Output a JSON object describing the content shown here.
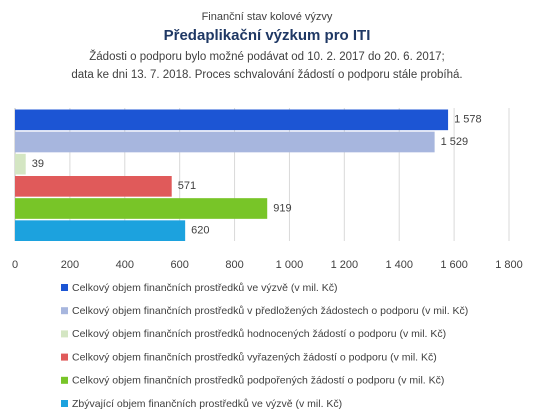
{
  "chart_data": {
    "type": "bar",
    "orientation": "horizontal",
    "title": "Předaplikační výzkum pro ITI",
    "supertitle": "Finanční stav kolové výzvy",
    "subtitle": [
      "Žádosti o podporu bylo možné  podávat od 10. 2. 2017 do 20. 6. 2017;",
      "data ke dni 13. 7. 2018. Proces schvalování žádostí o podporu stále probíhá."
    ],
    "series": [
      {
        "name": "Celkový objem finančních prostředků ve výzvě (v mil. Kč)",
        "color": "#1c55d4",
        "values": [
          1578
        ],
        "value_labels": [
          "1 578"
        ]
      },
      {
        "name": "Celkový objem finančních prostředků v předložených žádostech o podporu (v mil. Kč)",
        "color": "#a7b6de",
        "values": [
          1529
        ],
        "value_labels": [
          "1 529"
        ]
      },
      {
        "name": "Celkový objem finančních prostředků hodnocených žádostí o podporu (v mil. Kč)",
        "color": "#d4e6c3",
        "values": [
          39
        ]
      },
      {
        "name": "Celkový objem finančních prostředků vyřazených žádostí o podporu (v mil. Kč)",
        "color": "#e05a5a",
        "values": [
          571
        ]
      },
      {
        "name": "Celkový objem finančních prostředků podpořených žádostí o podporu (v mil. Kč)",
        "color": "#78c528",
        "values": [
          919
        ]
      },
      {
        "name": "Zbývající objem finančních prostředků ve výzvě (v mil. Kč)",
        "color": "#1ca2de",
        "values": [
          620
        ]
      }
    ],
    "xlim": [
      0,
      1800
    ],
    "xticks": [
      0,
      200,
      400,
      600,
      800,
      {
        "value": 1000,
        "label": "1 000"
      },
      {
        "value": 1200,
        "label": "1 200"
      },
      {
        "value": 1400,
        "label": "1 400"
      },
      {
        "value": 1600,
        "label": "1 600"
      },
      {
        "value": 1800,
        "label": "1 800"
      }
    ],
    "grid": true
  }
}
